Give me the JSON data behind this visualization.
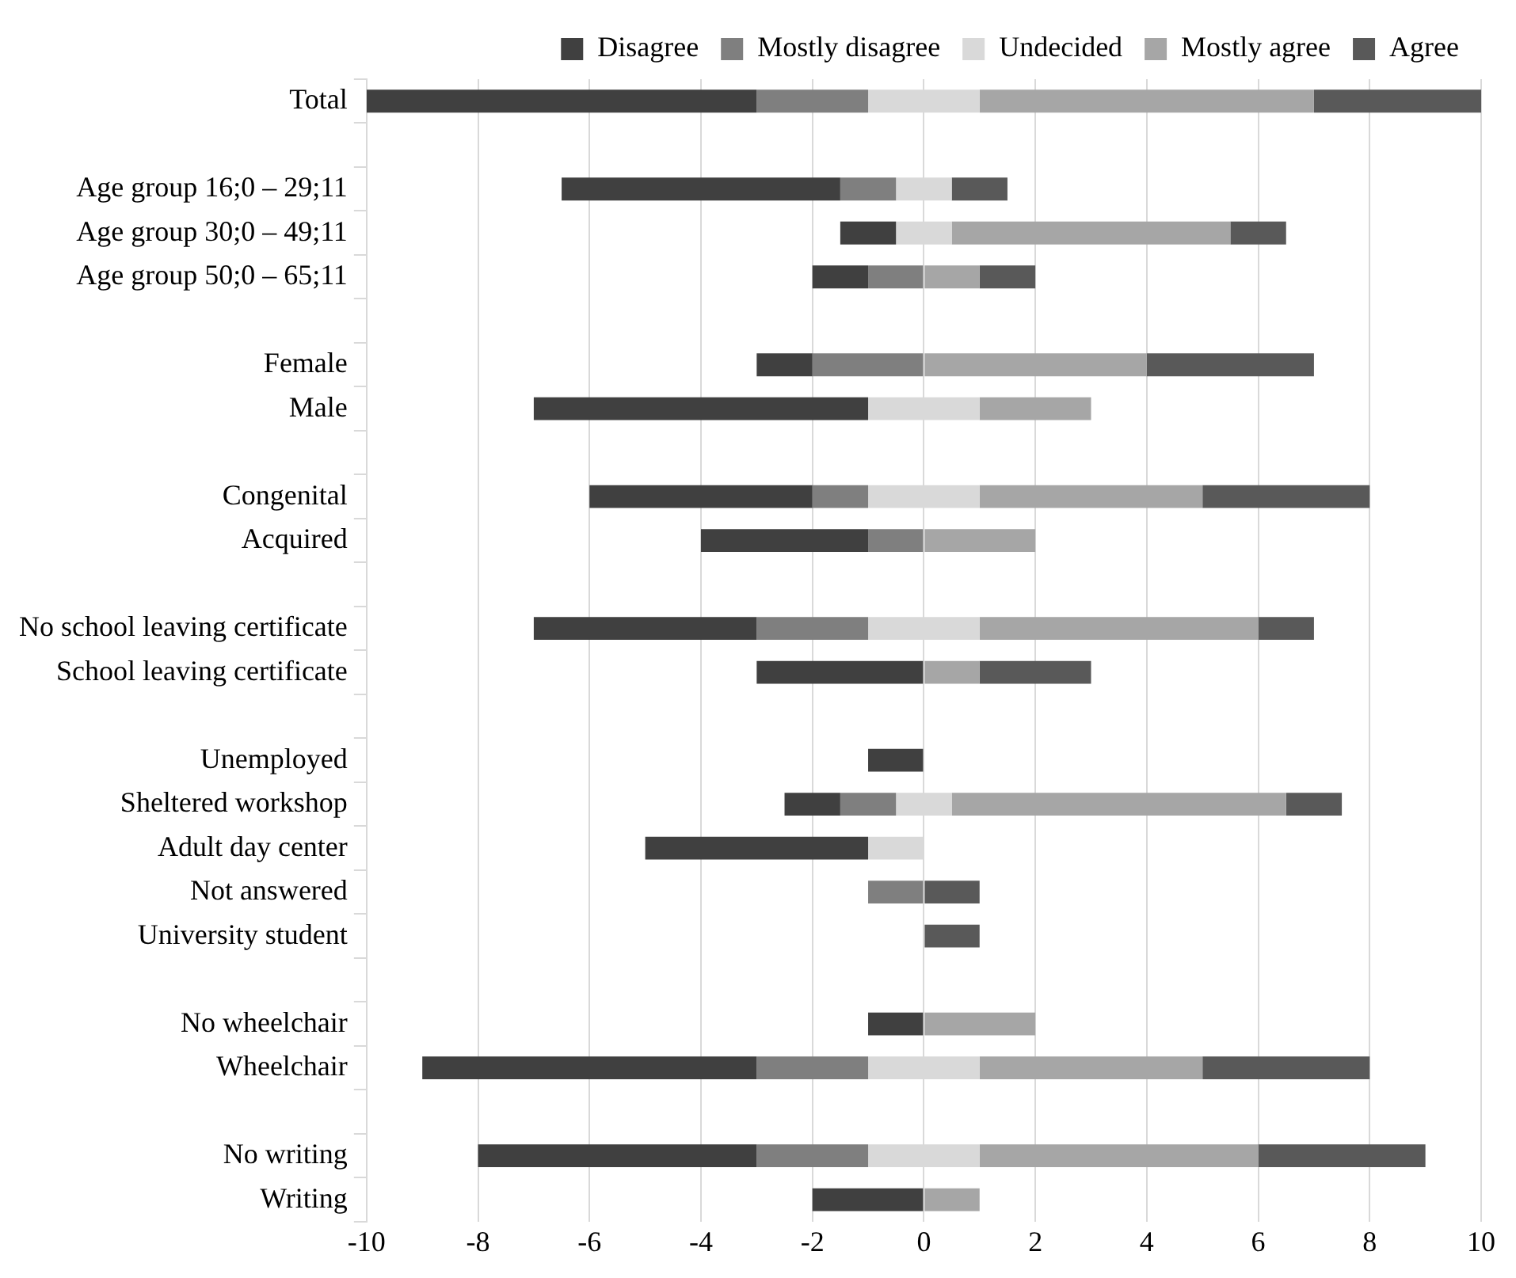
{
  "chart_data": {
    "type": "bar",
    "orientation": "horizontal",
    "categories": [
      "Total",
      null,
      "Age group 16;0 – 29;11",
      "Age group 30;0 – 49;11",
      "Age group 50;0 – 65;11",
      null,
      "Female",
      "Male",
      null,
      "Congenital",
      "Acquired",
      null,
      "No school leaving certificate",
      "School leaving certificate",
      null,
      "Unemployed",
      "Sheltered workshop",
      "Adult day center",
      "Not answered",
      "University student",
      null,
      "No wheelchair",
      "Wheelchair",
      null,
      "No writing",
      "Writing"
    ],
    "series": [
      {
        "name": "Disagree",
        "color": "#404040",
        "values": [
          7,
          null,
          5,
          1,
          1,
          null,
          1,
          6,
          null,
          4,
          3,
          null,
          4,
          3,
          null,
          1,
          1,
          4,
          null,
          null,
          null,
          1,
          6,
          null,
          5,
          2
        ],
        "base": [
          -10,
          null,
          -6.5,
          -1.5,
          -2,
          null,
          -3,
          -7,
          null,
          -6,
          -4,
          null,
          -7,
          -3,
          null,
          -1,
          -2.5,
          -5,
          null,
          null,
          null,
          -1,
          -9,
          null,
          -8,
          -2
        ]
      },
      {
        "name": "Mostly disagree",
        "color": "#7f7f7f",
        "values": [
          2,
          null,
          1,
          null,
          1,
          null,
          2,
          null,
          null,
          1,
          1,
          null,
          2,
          null,
          null,
          null,
          1,
          null,
          1,
          null,
          null,
          null,
          2,
          null,
          2,
          null
        ],
        "base": [
          -3,
          null,
          -1.5,
          null,
          -1,
          null,
          -2,
          null,
          null,
          -2,
          -1,
          null,
          -3,
          null,
          null,
          null,
          -1.5,
          null,
          -1,
          null,
          null,
          null,
          -3,
          null,
          -3,
          null
        ]
      },
      {
        "name": "Undecided",
        "color": "#d9d9d9",
        "values": [
          2,
          null,
          1,
          1,
          null,
          null,
          null,
          2,
          null,
          2,
          null,
          null,
          2,
          null,
          null,
          null,
          1,
          1,
          null,
          null,
          null,
          null,
          2,
          null,
          2,
          null
        ],
        "base": [
          -1,
          null,
          -0.5,
          -0.5,
          null,
          null,
          null,
          -1,
          null,
          -1,
          null,
          null,
          -1,
          null,
          null,
          null,
          -0.5,
          -1,
          null,
          null,
          null,
          null,
          -1,
          null,
          -1,
          null
        ]
      },
      {
        "name": "Mostly agree",
        "color": "#a6a6a6",
        "values": [
          6,
          null,
          null,
          5,
          1,
          null,
          4,
          2,
          null,
          4,
          2,
          null,
          5,
          1,
          null,
          null,
          6,
          null,
          null,
          null,
          null,
          2,
          4,
          null,
          5,
          1
        ],
        "base": [
          1,
          null,
          null,
          0.5,
          0,
          null,
          0,
          1,
          null,
          1,
          0,
          null,
          1,
          0,
          null,
          null,
          0.5,
          null,
          null,
          null,
          null,
          0,
          1,
          null,
          1,
          0
        ]
      },
      {
        "name": "Agree",
        "color": "#595959",
        "values": [
          3,
          null,
          1,
          1,
          1,
          null,
          3,
          null,
          null,
          3,
          null,
          null,
          1,
          2,
          null,
          null,
          1,
          null,
          1,
          1,
          null,
          null,
          3,
          null,
          3,
          null
        ],
        "base": [
          7,
          null,
          0.5,
          5.5,
          1,
          null,
          4,
          null,
          null,
          5,
          null,
          null,
          6,
          1,
          null,
          null,
          6.5,
          null,
          0,
          0,
          null,
          null,
          5,
          null,
          6,
          null
        ]
      }
    ],
    "xlim": [
      -10,
      10
    ],
    "xticks": [
      -10,
      -8,
      -6,
      -4,
      -2,
      0,
      2,
      4,
      6,
      8,
      10
    ],
    "grid": "x",
    "legend": "top"
  }
}
